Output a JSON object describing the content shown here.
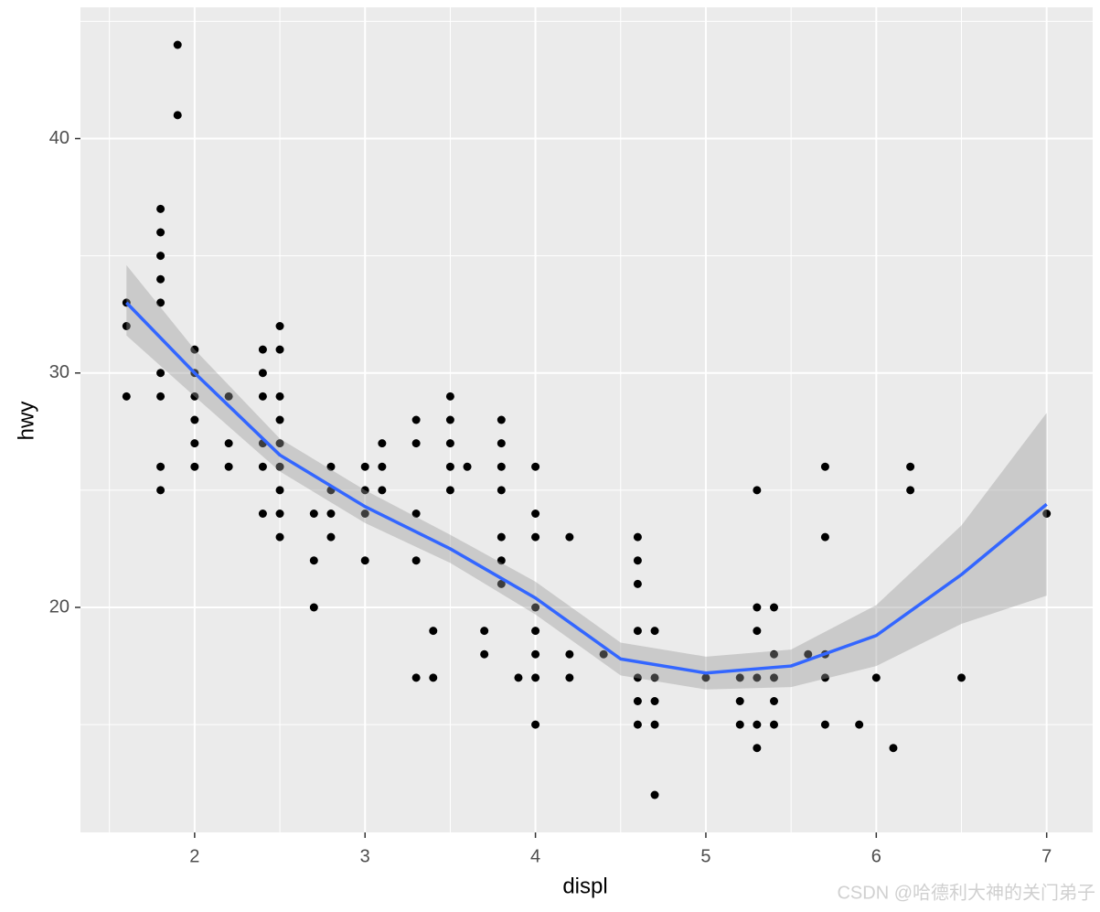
{
  "chart_data": {
    "type": "scatter",
    "xlabel": "displ",
    "ylabel": "hwy",
    "xlim": [
      1.33,
      7.27
    ],
    "ylim": [
      10.4,
      45.6
    ],
    "xticks": [
      2,
      3,
      4,
      5,
      6,
      7
    ],
    "yticks": [
      20,
      30,
      40
    ],
    "xminor": [
      1.5,
      2.5,
      3.5,
      4.5,
      5.5,
      6.5
    ],
    "yminor": [
      15,
      25,
      35,
      45
    ],
    "grid": true,
    "color": "#000000",
    "x": [
      1.6,
      1.6,
      1.6,
      1.8,
      1.8,
      1.8,
      1.8,
      1.8,
      1.8,
      1.8,
      1.8,
      1.8,
      1.9,
      1.9,
      2,
      2,
      2,
      2,
      2,
      2,
      2.2,
      2.2,
      2.2,
      2.4,
      2.4,
      2.4,
      2.4,
      2.4,
      2.4,
      2.5,
      2.5,
      2.5,
      2.5,
      2.5,
      2.5,
      2.5,
      2.5,
      2.5,
      2.7,
      2.7,
      2.7,
      2.8,
      2.8,
      2.8,
      2.8,
      3,
      3,
      3,
      3,
      3.1,
      3.1,
      3.1,
      3.3,
      3.3,
      3.3,
      3.3,
      3.3,
      3.4,
      3.4,
      3.5,
      3.5,
      3.5,
      3.5,
      3.5,
      3.6,
      3.7,
      3.7,
      3.8,
      3.8,
      3.8,
      3.8,
      3.8,
      3.8,
      3.8,
      3.9,
      4,
      4,
      4,
      4,
      4,
      4,
      4,
      4,
      4.2,
      4.2,
      4.2,
      4.4,
      4.6,
      4.6,
      4.6,
      4.6,
      4.6,
      4.6,
      4.6,
      4.7,
      4.7,
      4.7,
      4.7,
      4.7,
      5,
      5.2,
      5.2,
      5.2,
      5.3,
      5.3,
      5.3,
      5.3,
      5.3,
      5.3,
      5.4,
      5.4,
      5.4,
      5.4,
      5.4,
      5.6,
      5.7,
      5.7,
      5.7,
      5.7,
      5.7,
      5.9,
      6,
      6.1,
      6.2,
      6.2,
      6.5,
      7
    ],
    "y": [
      33,
      32,
      29,
      37,
      36,
      35,
      34,
      33,
      30,
      29,
      26,
      25,
      44,
      41,
      31,
      30,
      29,
      28,
      27,
      26,
      29,
      27,
      26,
      31,
      30,
      29,
      27,
      26,
      24,
      32,
      31,
      29,
      28,
      27,
      26,
      25,
      24,
      23,
      24,
      22,
      20,
      26,
      25,
      24,
      23,
      26,
      25,
      24,
      22,
      27,
      26,
      25,
      28,
      27,
      24,
      22,
      17,
      19,
      17,
      29,
      28,
      27,
      26,
      25,
      26,
      19,
      18,
      28,
      27,
      26,
      25,
      23,
      22,
      21,
      17,
      26,
      24,
      23,
      20,
      19,
      18,
      17,
      15,
      23,
      18,
      17,
      18,
      23,
      22,
      21,
      19,
      17,
      16,
      15,
      19,
      17,
      16,
      15,
      12,
      17,
      17,
      16,
      15,
      25,
      20,
      19,
      17,
      15,
      14,
      20,
      18,
      17,
      16,
      15,
      18,
      26,
      23,
      18,
      17,
      15,
      15,
      17,
      14,
      26,
      25,
      17,
      24
    ],
    "smooth": {
      "color": "#3366ff",
      "band_color": "#999999",
      "x": [
        1.6,
        2,
        2.5,
        3,
        3.5,
        4,
        4.5,
        5,
        5.5,
        6,
        6.5,
        7
      ],
      "y": [
        33.0,
        30.0,
        26.5,
        24.3,
        22.5,
        20.4,
        17.8,
        17.2,
        17.5,
        18.8,
        21.4,
        24.4
      ],
      "ymin": [
        31.6,
        29.0,
        25.8,
        23.6,
        21.9,
        19.7,
        17.1,
        16.5,
        16.6,
        17.5,
        19.3,
        20.5
      ],
      "ymax": [
        34.6,
        31.0,
        27.2,
        25.0,
        23.1,
        21.1,
        18.5,
        17.9,
        18.2,
        20.1,
        23.5,
        28.3
      ]
    }
  },
  "watermark": "CSDN @哈德利大神的关门弟子"
}
